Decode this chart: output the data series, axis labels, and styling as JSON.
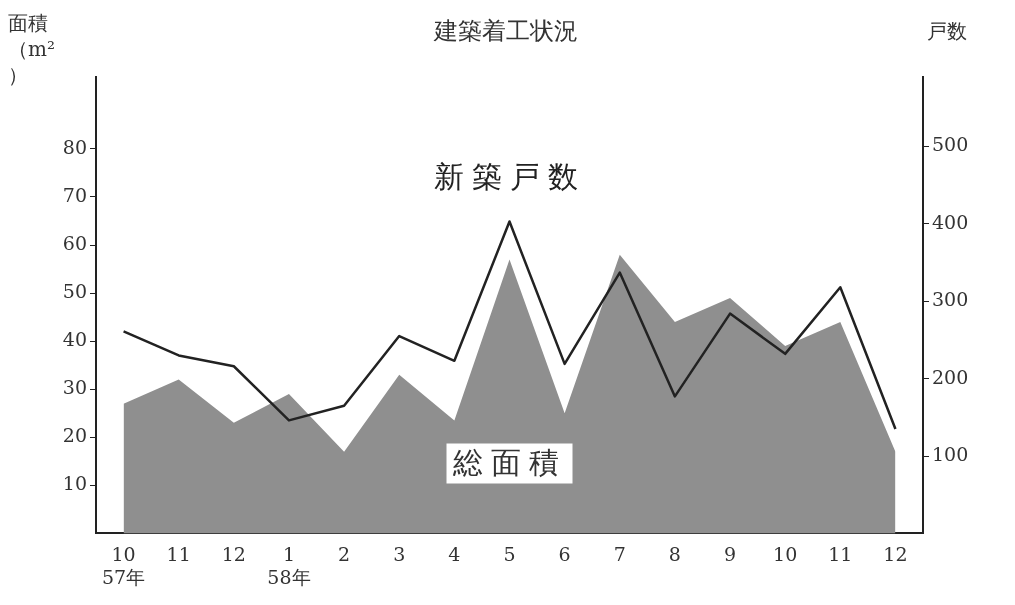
{
  "chart_data": {
    "type": "area",
    "title": "建築着工状況",
    "ylabel": "面積（m²）",
    "y2label": "戸数",
    "categories": [
      "10\n57年",
      "11",
      "12",
      "1\n58年",
      "2",
      "3",
      "4",
      "5",
      "6",
      "7",
      "8",
      "9",
      "10",
      "11",
      "12"
    ],
    "series": [
      {
        "name": "総面積",
        "color": "#8f8f8f",
        "values": [
          27,
          32,
          23,
          29,
          17,
          33,
          23.5,
          57,
          25,
          58,
          44,
          49,
          39,
          44,
          17
        ]
      },
      {
        "name": "新築戸数",
        "type": "line",
        "axis": "y2",
        "color": "#222222",
        "values": [
          261,
          230,
          216,
          146,
          165,
          255,
          223,
          403,
          219,
          337,
          177,
          284,
          232,
          318,
          135
        ]
      }
    ],
    "ylim": [
      0,
      95
    ],
    "yticks": [
      10,
      20,
      30,
      40,
      50,
      60,
      70,
      80
    ],
    "y2lim": [
      0,
      590
    ],
    "y2ticks": [
      100,
      200,
      300,
      400,
      500
    ],
    "grid": false,
    "legend": false,
    "marker": "none",
    "line_style": "solid"
  }
}
